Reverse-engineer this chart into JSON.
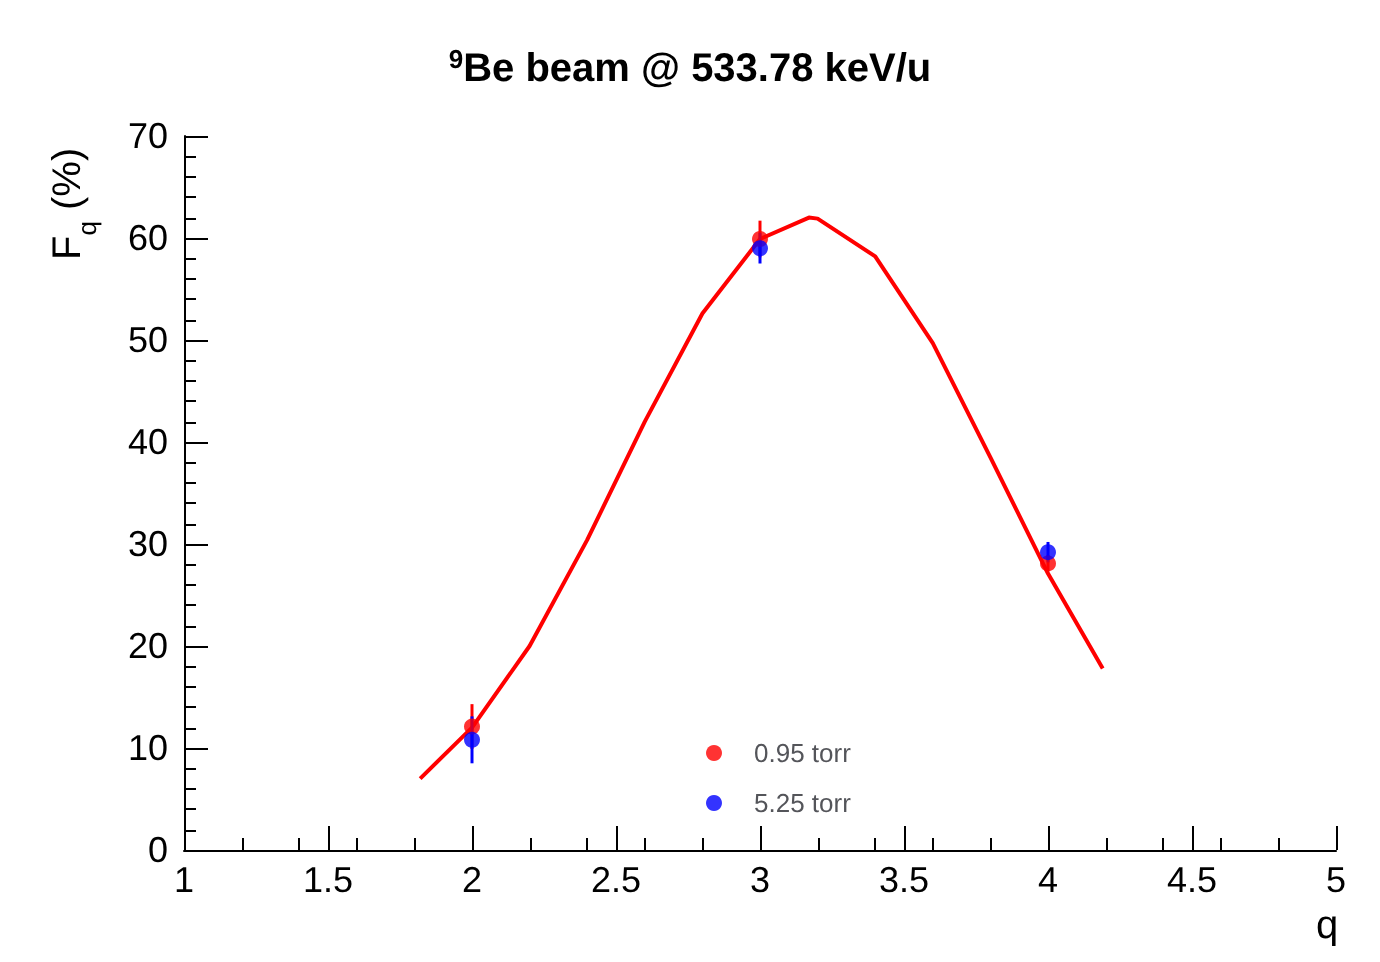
{
  "chart_data": {
    "type": "scatter",
    "title": "$^{9}$Be beam @ 533.78 keV/u",
    "xlabel": "q",
    "ylabel": "F$_{q}$ (%)",
    "xlim": [
      1,
      5
    ],
    "xticks": [
      1,
      1.5,
      2,
      2.5,
      3,
      3.5,
      4,
      4.5,
      5
    ],
    "ylim": [
      0,
      70
    ],
    "yticks": [
      0,
      10,
      20,
      30,
      40,
      50,
      60,
      70
    ],
    "grid": false,
    "legend": "bottom",
    "marker": "circle",
    "series": [
      {
        "name": "0.95 torr",
        "color": "#ff0000",
        "x": [
          2,
          3,
          4
        ],
        "values": [
          12.1,
          59.9,
          28.1
        ],
        "errors": [
          2.2,
          1.8,
          0.8
        ]
      },
      {
        "name": "5.25 torr",
        "color": "#0000ff",
        "x": [
          2,
          3,
          4
        ],
        "values": [
          10.8,
          59.0,
          29.2
        ],
        "errors": [
          2.3,
          1.5,
          1.0
        ]
      },
      {
        "type": "line",
        "color": "#ff0000",
        "marker": "none",
        "x": [
          1.82,
          2.0,
          2.2,
          2.4,
          2.6,
          2.8,
          3.0,
          3.17,
          3.2,
          3.4,
          3.6,
          3.8,
          4.0,
          4.19
        ],
        "values": [
          7.0,
          12.0,
          20.0,
          30.4,
          42.0,
          52.6,
          59.9,
          62,
          61.9,
          58.2,
          49.7,
          38.5,
          27.1,
          17.8
        ]
      }
    ]
  }
}
